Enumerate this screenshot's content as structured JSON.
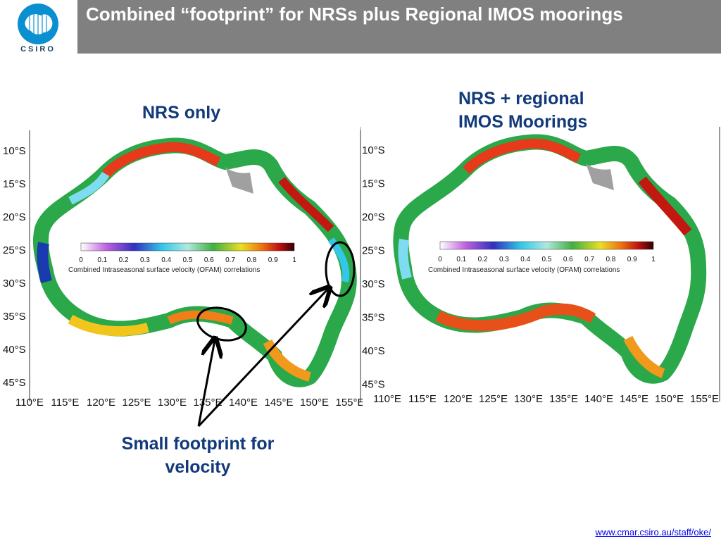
{
  "logo": {
    "text": "CSIRO",
    "icon": "csiro-globe-icon"
  },
  "slide": {
    "title": "Combined “footprint” for NRSs plus Regional IMOS moorings"
  },
  "labels": {
    "nrs_only": "NRS only",
    "nrs_regional": "NRS + regional IMOS Moorings",
    "small_footprint": "Small footprint for velocity"
  },
  "maps": {
    "lat_labels": [
      "10°S",
      "15°S",
      "20°S",
      "25°S",
      "30°S",
      "35°S",
      "40°S",
      "45°S"
    ],
    "lon_labels": [
      "110°E",
      "115°E",
      "120°E",
      "125°E",
      "130°E",
      "135°E",
      "140°E",
      "145°E",
      "150°E",
      "155°E"
    ],
    "colorbar_ticks": [
      "0",
      "0.1",
      "0.2",
      "0.3",
      "0.4",
      "0.5",
      "0.6",
      "0.7",
      "0.8",
      "0.9",
      "1"
    ],
    "colorbar_label": "Combined Intraseasonal surface velocity (OFAM) correlations"
  },
  "footer": {
    "url": "www.cmar.csiro.au/staff/oke/"
  }
}
